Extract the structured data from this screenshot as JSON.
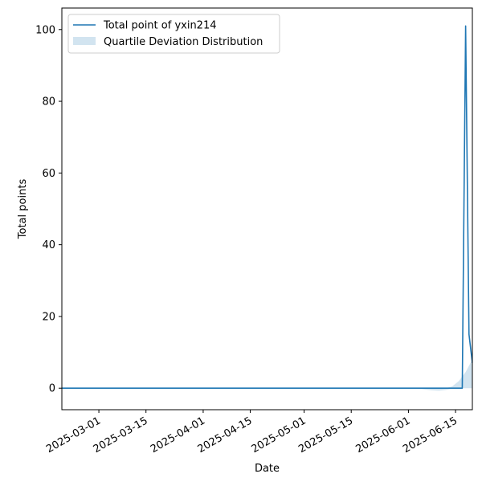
{
  "chart_data": {
    "type": "line",
    "title": "",
    "xlabel": "Date",
    "ylabel": "Total points",
    "x_type": "date",
    "xlim": [
      "2025-02-18",
      "2025-06-20"
    ],
    "ylim": [
      -6,
      106
    ],
    "xticks": [
      "2025-03-01",
      "2025-03-15",
      "2025-04-01",
      "2025-04-15",
      "2025-05-01",
      "2025-05-15",
      "2025-06-01",
      "2025-06-15"
    ],
    "yticks": [
      0,
      20,
      40,
      60,
      80,
      100
    ],
    "grid": false,
    "legend_position": "top-left",
    "series": [
      {
        "name": "Total point of yxin214",
        "color": "#1f77b4",
        "points": [
          {
            "x": "2025-02-18",
            "y": 0
          },
          {
            "x": "2025-06-17",
            "y": 0
          },
          {
            "x": "2025-06-18",
            "y": 101
          },
          {
            "x": "2025-06-19",
            "y": 15
          },
          {
            "x": "2025-06-20",
            "y": 7
          }
        ]
      }
    ],
    "band": {
      "name": "Quartile Deviation Distribution",
      "color": "#1f77b4",
      "opacity": 0.2,
      "points": [
        {
          "x": "2025-02-18",
          "lower": 0,
          "upper": 0
        },
        {
          "x": "2025-06-01",
          "lower": 0,
          "upper": 0
        },
        {
          "x": "2025-06-05",
          "lower": -0.3,
          "upper": 0
        },
        {
          "x": "2025-06-08",
          "lower": -0.6,
          "upper": 0
        },
        {
          "x": "2025-06-10",
          "lower": -0.7,
          "upper": 0
        },
        {
          "x": "2025-06-12",
          "lower": -0.5,
          "upper": 0
        },
        {
          "x": "2025-06-14",
          "lower": -0.2,
          "upper": 0.5
        },
        {
          "x": "2025-06-16",
          "lower": 0,
          "upper": 2
        },
        {
          "x": "2025-06-18",
          "lower": 0,
          "upper": 4.5
        },
        {
          "x": "2025-06-20",
          "lower": 0,
          "upper": 8
        }
      ]
    }
  }
}
